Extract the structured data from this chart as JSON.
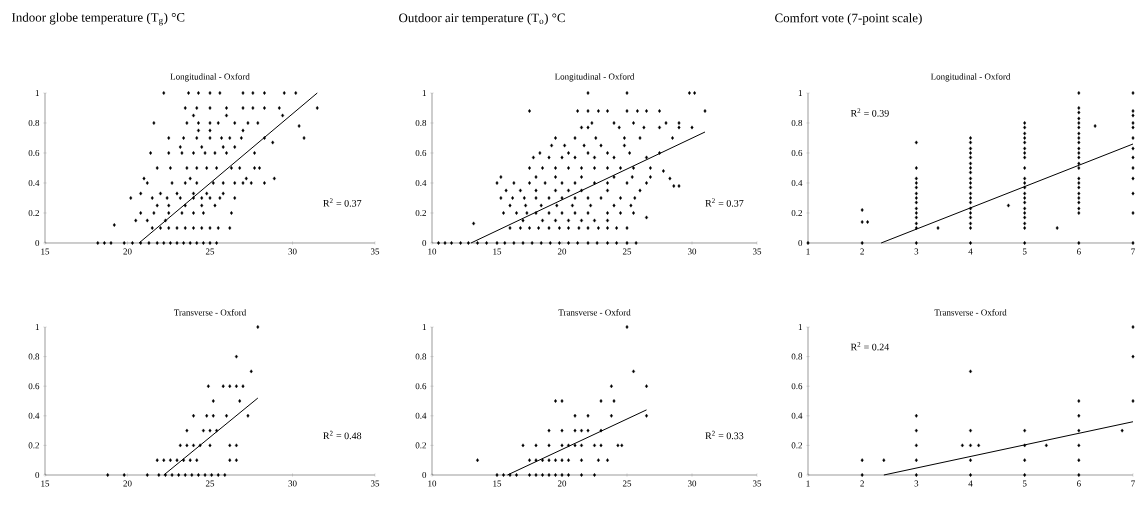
{
  "chart_data": [
    {
      "type": "scatter",
      "title": "Indoor globe temperature (T$_{g}$) °C",
      "subtitle": "Longitudinal - Oxford",
      "xlim": [
        15,
        35
      ],
      "xticks": [
        15,
        20,
        25,
        30,
        35
      ],
      "ylim": [
        0,
        1
      ],
      "yticks": [
        0,
        0.2,
        0.4,
        0.6,
        0.8,
        1
      ],
      "annotations": [
        "R$^{2}$ = 0.37"
      ],
      "series": [
        {
          "color": "#000000",
          "marker": "diamond",
          "x": [
            18.2,
            18.6,
            19,
            19.8,
            20.3,
            20.8,
            21.3,
            21.8,
            22.2,
            22.6,
            23,
            23.4,
            23.8,
            24.2,
            24.6,
            25,
            25.4,
            19.2,
            21.5,
            22,
            22.5,
            23,
            23.5,
            24,
            24.5,
            25,
            25.5,
            26.2,
            20.5,
            21.2,
            22.3,
            20.8,
            21.6,
            22.5,
            23.3,
            24,
            24.6,
            26.3,
            21.8,
            22.5,
            23.5,
            24.5,
            25.3,
            20.2,
            21.5,
            22.4,
            23.2,
            24,
            24.5,
            25,
            25.6,
            26.5,
            20.8,
            22,
            23,
            24,
            24.8,
            25.8,
            21.2,
            22.7,
            23.5,
            24.2,
            25.2,
            25.8,
            26.5,
            27,
            27.5,
            28.3,
            21,
            23.8,
            27.2,
            28.9,
            21.8,
            22.6,
            23.6,
            24.2,
            24.8,
            25.4,
            26.3,
            26.8,
            27.7,
            28,
            21.4,
            22.5,
            23.3,
            24,
            24.7,
            25.3,
            26,
            27.7,
            23.2,
            24.5,
            25.8,
            26.5,
            22.5,
            23.4,
            24.2,
            25,
            25.7,
            26.2,
            26.9,
            28.3,
            24.3,
            25,
            27,
            21.6,
            23.6,
            24.3,
            25,
            25.5,
            26.5,
            27.3,
            27.9,
            24,
            26,
            29.4,
            23.5,
            24.2,
            25,
            26,
            27,
            27.6,
            28.3,
            29.2,
            22.2,
            23.7,
            24.3,
            25,
            25.6,
            27,
            27.6,
            28.3,
            29.5,
            30.2,
            31.5,
            30.4,
            30.7,
            28.8
          ],
          "values": [
            0,
            0,
            0,
            0,
            0,
            0,
            0,
            0,
            0,
            0,
            0,
            0,
            0,
            0,
            0,
            0,
            0,
            0.12,
            0.1,
            0.1,
            0.1,
            0.1,
            0.1,
            0.1,
            0.1,
            0.1,
            0.1,
            0.1,
            0.15,
            0.15,
            0.15,
            0.2,
            0.2,
            0.2,
            0.2,
            0.2,
            0.2,
            0.2,
            0.25,
            0.25,
            0.25,
            0.25,
            0.25,
            0.3,
            0.3,
            0.3,
            0.3,
            0.3,
            0.3,
            0.3,
            0.3,
            0.3,
            0.33,
            0.33,
            0.33,
            0.33,
            0.33,
            0.33,
            0.4,
            0.4,
            0.4,
            0.4,
            0.4,
            0.4,
            0.4,
            0.4,
            0.4,
            0.4,
            0.43,
            0.43,
            0.43,
            0.43,
            0.5,
            0.5,
            0.5,
            0.5,
            0.5,
            0.5,
            0.5,
            0.5,
            0.5,
            0.5,
            0.6,
            0.6,
            0.6,
            0.6,
            0.6,
            0.6,
            0.6,
            0.6,
            0.64,
            0.64,
            0.64,
            0.64,
            0.7,
            0.7,
            0.7,
            0.7,
            0.7,
            0.7,
            0.7,
            0.7,
            0.75,
            0.75,
            0.75,
            0.8,
            0.8,
            0.8,
            0.8,
            0.8,
            0.8,
            0.8,
            0.8,
            0.85,
            0.85,
            0.85,
            0.9,
            0.9,
            0.9,
            0.9,
            0.9,
            0.9,
            0.9,
            0.9,
            1,
            1,
            1,
            1,
            1,
            1,
            1,
            1,
            1,
            1,
            0.9,
            0.78,
            0.7,
            0.67
          ]
        },
        {
          "type": "line",
          "color": "#000000",
          "marker": "none",
          "x": [
            20.7,
            31.5
          ],
          "values": [
            0,
            1
          ]
        }
      ]
    },
    {
      "type": "scatter",
      "title": "Outdoor air temperature  (T$_{o}$) °C",
      "subtitle": "Longitudinal - Oxford",
      "xlim": [
        10,
        35
      ],
      "xticks": [
        10,
        15,
        20,
        25,
        30,
        35
      ],
      "ylim": [
        0,
        1
      ],
      "yticks": [
        0,
        0.2,
        0.4,
        0.6,
        0.8,
        1
      ],
      "annotations": [
        "R$^{2}$ = 0.37"
      ],
      "series": [
        {
          "color": "#000000",
          "marker": "diamond",
          "x": [
            10.5,
            11,
            11.5,
            12.2,
            12.8,
            13.5,
            14.2,
            15,
            15.6,
            16.3,
            17,
            17.7,
            18.4,
            19.1,
            19.8,
            20.5,
            21.2,
            22,
            22.7,
            23.5,
            24.2,
            25,
            25.7,
            13.2,
            26.5,
            16,
            16.8,
            17.5,
            18.2,
            19,
            19.8,
            20.5,
            21.3,
            22,
            22.8,
            23.5,
            24.2,
            25,
            17,
            18.5,
            19.5,
            20.5,
            21.5,
            22.5,
            23.5,
            15.5,
            16.5,
            17.3,
            18,
            19,
            20,
            21,
            22,
            23.5,
            24.5,
            25.5,
            16,
            17.2,
            18.4,
            19.6,
            20.8,
            22.2,
            24,
            25.3,
            15.3,
            16.2,
            17.1,
            18,
            19,
            20,
            21,
            22,
            23,
            24.5,
            25.6,
            15.7,
            16.8,
            18,
            19.5,
            20.5,
            21.5,
            23.5,
            26,
            15,
            16.3,
            17.5,
            18.7,
            20,
            21,
            22.5,
            23.5,
            25,
            26.5,
            15.3,
            18,
            19.5,
            21.5,
            24,
            25.4,
            26.8,
            17.5,
            18.5,
            19.5,
            20.5,
            21.5,
            22.5,
            23.5,
            24.5,
            25.5,
            26.8,
            17.8,
            19,
            20,
            21,
            22.5,
            24,
            26.5,
            18.3,
            20.5,
            22,
            23.5,
            25.2,
            27.5,
            19.2,
            20.2,
            21.7,
            23,
            24.8,
            19.5,
            21,
            22.6,
            24.8,
            26,
            28.5,
            21.5,
            22,
            24.4,
            26.3,
            27.5,
            29,
            30,
            22.3,
            24,
            25.5,
            28,
            29,
            17.5,
            21.2,
            22,
            22.8,
            23.5,
            25,
            25.8,
            26.5,
            27.5,
            31,
            22,
            25,
            29.8,
            30.2,
            27.8,
            28.3,
            28.6,
            29
          ],
          "values": [
            0,
            0,
            0,
            0,
            0,
            0,
            0,
            0,
            0,
            0,
            0,
            0,
            0,
            0,
            0,
            0,
            0,
            0,
            0,
            0,
            0,
            0,
            0,
            0.13,
            0.17,
            0.1,
            0.1,
            0.1,
            0.1,
            0.1,
            0.1,
            0.1,
            0.1,
            0.1,
            0.1,
            0.1,
            0.1,
            0.1,
            0.15,
            0.15,
            0.15,
            0.15,
            0.15,
            0.15,
            0.15,
            0.2,
            0.2,
            0.2,
            0.2,
            0.2,
            0.2,
            0.2,
            0.2,
            0.2,
            0.2,
            0.2,
            0.25,
            0.25,
            0.25,
            0.25,
            0.25,
            0.25,
            0.25,
            0.25,
            0.3,
            0.3,
            0.3,
            0.3,
            0.3,
            0.3,
            0.3,
            0.3,
            0.3,
            0.3,
            0.3,
            0.35,
            0.35,
            0.35,
            0.35,
            0.35,
            0.35,
            0.35,
            0.35,
            0.4,
            0.4,
            0.4,
            0.4,
            0.4,
            0.4,
            0.4,
            0.4,
            0.4,
            0.4,
            0.44,
            0.44,
            0.44,
            0.44,
            0.44,
            0.44,
            0.44,
            0.5,
            0.5,
            0.5,
            0.5,
            0.5,
            0.5,
            0.5,
            0.5,
            0.5,
            0.5,
            0.57,
            0.57,
            0.57,
            0.57,
            0.57,
            0.57,
            0.57,
            0.6,
            0.6,
            0.6,
            0.6,
            0.6,
            0.6,
            0.65,
            0.65,
            0.65,
            0.65,
            0.65,
            0.7,
            0.7,
            0.7,
            0.7,
            0.7,
            0.7,
            0.77,
            0.77,
            0.77,
            0.77,
            0.77,
            0.77,
            0.77,
            0.8,
            0.8,
            0.8,
            0.8,
            0.8,
            0.88,
            0.88,
            0.88,
            0.88,
            0.88,
            0.88,
            0.88,
            0.88,
            0.88,
            0.88,
            1,
            1,
            1,
            1,
            0.48,
            0.43,
            0.38,
            0.38
          ]
        },
        {
          "type": "line",
          "color": "#000000",
          "marker": "none",
          "x": [
            13,
            31
          ],
          "values": [
            0,
            0.74
          ]
        }
      ]
    },
    {
      "type": "scatter",
      "title": "Comfort vote (7-point scale)",
      "subtitle": "Longitudinal - Oxford",
      "xlim": [
        1,
        7
      ],
      "xticks": [
        1,
        2,
        3,
        4,
        5,
        6,
        7
      ],
      "ylim": [
        0,
        1
      ],
      "yticks": [
        0,
        0.2,
        0.4,
        0.6,
        0.8,
        1
      ],
      "annotations": [
        "R$^{2}$ = 0.39"
      ],
      "series": [
        {
          "color": "#000000",
          "marker": "diamond",
          "x": [
            1,
            2,
            2,
            2,
            2.1,
            3,
            3,
            3,
            3,
            3,
            3,
            3,
            3,
            3,
            3,
            3,
            3,
            3,
            3,
            3.4,
            4,
            4,
            4,
            4,
            4,
            4,
            4,
            4,
            4,
            4,
            4,
            4,
            4,
            4,
            4,
            4,
            4,
            4,
            4,
            4,
            4.7,
            5,
            5,
            5,
            5,
            5,
            5,
            5,
            5,
            5,
            5,
            5,
            5,
            5,
            5,
            5,
            5,
            5,
            5,
            5,
            5,
            5,
            5.6,
            6,
            6,
            6,
            6,
            6,
            6,
            6,
            6,
            6,
            6,
            6,
            6,
            6,
            6,
            6,
            6,
            6,
            6,
            6,
            6,
            6,
            6,
            6,
            6.3,
            7,
            7,
            7,
            7,
            7,
            7,
            7,
            7,
            7,
            7,
            7,
            7,
            7
          ],
          "values": [
            0,
            0,
            0.22,
            0.14,
            0.14,
            0,
            0.1,
            0.13,
            0.17,
            0.2,
            0.23,
            0.27,
            0.3,
            0.33,
            0.37,
            0.4,
            0.43,
            0.5,
            0.67,
            0.1,
            0,
            0.1,
            0.13,
            0.17,
            0.2,
            0.23,
            0.27,
            0.3,
            0.33,
            0.37,
            0.4,
            0.43,
            0.47,
            0.5,
            0.53,
            0.57,
            0.6,
            0.63,
            0.67,
            0.7,
            0.25,
            0,
            0.1,
            0.13,
            0.17,
            0.2,
            0.23,
            0.27,
            0.3,
            0.33,
            0.37,
            0.4,
            0.43,
            0.5,
            0.57,
            0.6,
            0.63,
            0.67,
            0.7,
            0.73,
            0.77,
            0.8,
            0.1,
            0,
            0.2,
            0.23,
            0.27,
            0.3,
            0.33,
            0.37,
            0.4,
            0.43,
            0.5,
            0.53,
            0.57,
            0.6,
            0.63,
            0.67,
            0.7,
            0.73,
            0.77,
            0.8,
            0.83,
            0.87,
            0.9,
            1,
            0.78,
            0,
            0.2,
            0.33,
            0.43,
            0.5,
            0.57,
            0.63,
            0.7,
            0.77,
            0.8,
            0.85,
            0.88,
            1
          ]
        },
        {
          "type": "line",
          "color": "#000000",
          "marker": "none",
          "x": [
            2.35,
            7
          ],
          "values": [
            0,
            0.66
          ]
        }
      ]
    },
    {
      "type": "scatter",
      "title": "Transverse - Oxford",
      "xlim": [
        15,
        35
      ],
      "xticks": [
        15,
        20,
        25,
        30,
        35
      ],
      "ylim": [
        0,
        1
      ],
      "yticks": [
        0,
        0.2,
        0.4,
        0.6,
        0.8,
        1
      ],
      "annotations": [
        "R$^{2}$ = 0.48"
      ],
      "series": [
        {
          "color": "#000000",
          "marker": "diamond",
          "x": [
            18.8,
            19.8,
            21.2,
            21.9,
            22.3,
            22.7,
            23.1,
            23.5,
            23.9,
            24.3,
            24.7,
            25.1,
            25.5,
            25.9,
            21.8,
            22.2,
            22.6,
            23,
            23.4,
            23.8,
            24.2,
            26.2,
            26.6,
            23.2,
            23.6,
            24,
            24.4,
            25,
            26.2,
            26.6,
            23.6,
            24.6,
            25,
            25.4,
            24,
            24.8,
            25.2,
            26,
            27.3,
            25.2,
            26.8,
            24.9,
            25.8,
            26.2,
            26.6,
            27,
            26.6,
            27.5,
            27.9
          ],
          "values": [
            0,
            0,
            0,
            0,
            0,
            0,
            0,
            0,
            0,
            0,
            0,
            0,
            0,
            0,
            0.1,
            0.1,
            0.1,
            0.1,
            0.1,
            0.1,
            0.1,
            0.1,
            0.1,
            0.2,
            0.2,
            0.2,
            0.2,
            0.2,
            0.2,
            0.2,
            0.3,
            0.3,
            0.3,
            0.3,
            0.4,
            0.4,
            0.4,
            0.4,
            0.4,
            0.5,
            0.5,
            0.6,
            0.6,
            0.6,
            0.6,
            0.6,
            0.8,
            0.7,
            1
          ]
        },
        {
          "type": "line",
          "color": "#000000",
          "marker": "none",
          "x": [
            22.2,
            27.9
          ],
          "values": [
            0,
            0.52
          ]
        }
      ]
    },
    {
      "type": "scatter",
      "title": "Transverse - Oxford",
      "xlim": [
        10,
        35
      ],
      "xticks": [
        10,
        15,
        20,
        25,
        30,
        35
      ],
      "ylim": [
        0,
        1
      ],
      "yticks": [
        0,
        0.2,
        0.4,
        0.6,
        0.8,
        1
      ],
      "annotations": [
        "R$^{2}$ = 0.33"
      ],
      "series": [
        {
          "color": "#000000",
          "marker": "diamond",
          "x": [
            13.5,
            15,
            15.5,
            16,
            16.5,
            17.5,
            18,
            18.5,
            19,
            19.5,
            20,
            20.5,
            21.5,
            22.5,
            17.5,
            18,
            18.5,
            19,
            19.5,
            20,
            20.5,
            21.5,
            22.8,
            23.5,
            17,
            18,
            19,
            20,
            20.5,
            21,
            21.5,
            22.5,
            23,
            24.3,
            24.6,
            19,
            20,
            21,
            21.5,
            22,
            23,
            21,
            22,
            23.8,
            26.5,
            19.5,
            20,
            23,
            24,
            23.8,
            26.5,
            25.5,
            25
          ],
          "values": [
            0.1,
            0,
            0,
            0,
            0,
            0,
            0,
            0,
            0,
            0,
            0,
            0,
            0,
            0,
            0.1,
            0.1,
            0.1,
            0.1,
            0.1,
            0.1,
            0.1,
            0.1,
            0.1,
            0.1,
            0.2,
            0.2,
            0.2,
            0.2,
            0.2,
            0.2,
            0.2,
            0.2,
            0.2,
            0.2,
            0.2,
            0.3,
            0.3,
            0.3,
            0.3,
            0.3,
            0.3,
            0.4,
            0.4,
            0.4,
            0.4,
            0.5,
            0.5,
            0.5,
            0.5,
            0.6,
            0.6,
            0.7,
            1
          ]
        },
        {
          "type": "line",
          "color": "#000000",
          "marker": "none",
          "x": [
            15.8,
            26.5
          ],
          "values": [
            0,
            0.44
          ]
        }
      ]
    },
    {
      "type": "scatter",
      "title": "Transverse - Oxford",
      "xlim": [
        1,
        7
      ],
      "xticks": [
        1,
        2,
        3,
        4,
        5,
        6,
        7
      ],
      "ylim": [
        0,
        1
      ],
      "yticks": [
        0,
        0.2,
        0.4,
        0.6,
        0.8,
        1
      ],
      "annotations": [
        "R$^{2}$ = 0.24"
      ],
      "series": [
        {
          "color": "#000000",
          "marker": "diamond",
          "x": [
            2,
            2,
            2.4,
            3,
            3,
            3,
            3,
            3,
            4,
            4,
            4,
            3.85,
            4.15,
            4,
            4,
            5,
            5,
            5,
            5,
            5.4,
            6,
            6,
            6,
            6,
            6,
            6,
            6.8,
            7,
            7,
            7
          ],
          "values": [
            0,
            0.1,
            0.1,
            0,
            0.1,
            0.2,
            0.3,
            0.4,
            0,
            0.1,
            0.2,
            0.2,
            0.2,
            0.3,
            0.7,
            0,
            0.1,
            0.2,
            0.3,
            0.2,
            0,
            0.1,
            0.2,
            0.3,
            0.4,
            0.5,
            0.3,
            0.5,
            0.8,
            1
          ]
        },
        {
          "type": "line",
          "color": "#000000",
          "marker": "none",
          "x": [
            2.4,
            7
          ],
          "values": [
            0,
            0.36
          ]
        }
      ]
    }
  ]
}
